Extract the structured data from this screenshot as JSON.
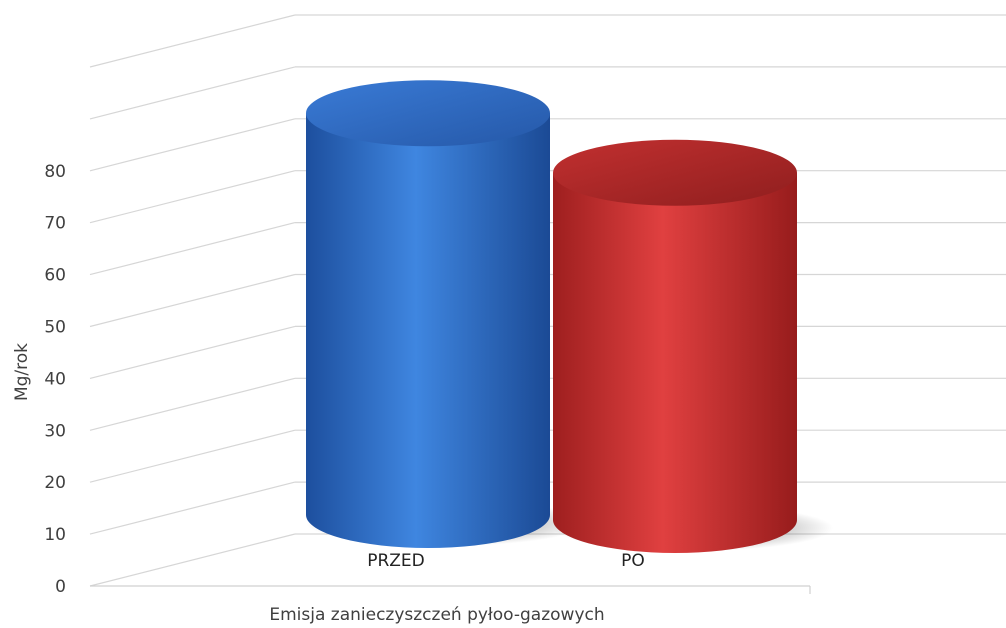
{
  "chart_data": {
    "type": "bar",
    "style": "3d-cylinder",
    "categories": [
      "PRZED",
      "PO"
    ],
    "values": [
      81,
      70
    ],
    "colors": [
      "#3a78d0",
      "#cc3333"
    ],
    "xlabel": "Emisja zanieczyszczeń pyłoo-gazowych",
    "ylabel": "Mg/rok",
    "ylim": [
      0,
      80
    ],
    "yticks": [
      0,
      10,
      20,
      30,
      40,
      50,
      60,
      70,
      80
    ],
    "grid": true
  }
}
